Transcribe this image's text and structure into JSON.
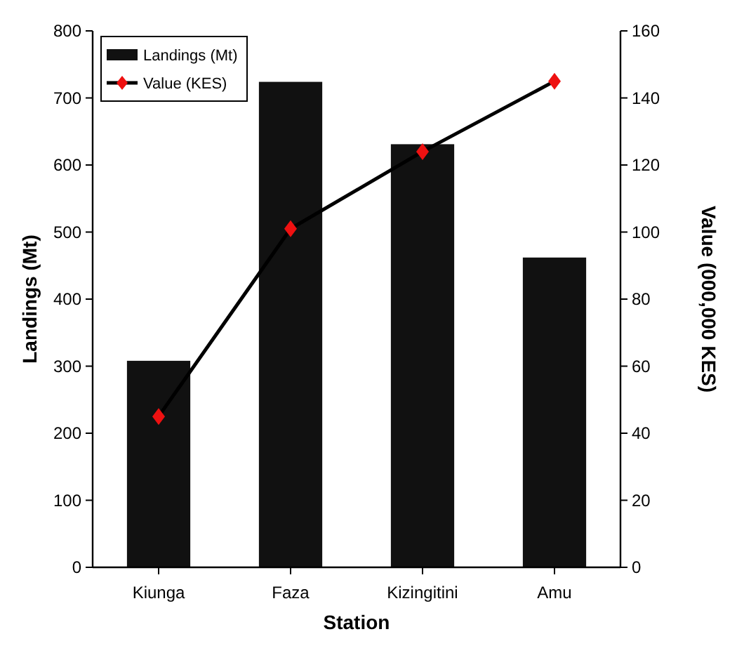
{
  "chart_data": {
    "type": "bar",
    "xlabel": "Station",
    "ylabel": "Landings (Mt)",
    "y2label": "Value (000,000 KES)",
    "categories": [
      "Kiunga",
      "Faza",
      "Kizingitini",
      "Amu"
    ],
    "series": [
      {
        "name": "Landings (Mt)",
        "color": "#111111",
        "values": [
          308,
          724,
          631,
          462
        ]
      },
      {
        "name": "Value (KES)",
        "type": "line",
        "axis": "y2",
        "color": "#000000",
        "marker": "diamond",
        "colors": [
          "#ee1111",
          "#ee1111",
          "#ee1111",
          "#ee1111"
        ],
        "values": [
          45,
          101,
          124,
          145
        ]
      }
    ],
    "ylim": [
      0,
      800
    ],
    "yticks": [
      0,
      100,
      200,
      300,
      400,
      500,
      600,
      700,
      800
    ],
    "y2lim": [
      0,
      160
    ],
    "y2ticks": [
      0,
      20,
      40,
      60,
      80,
      100,
      120,
      140,
      160
    ],
    "legend": "top left",
    "grid": false
  }
}
